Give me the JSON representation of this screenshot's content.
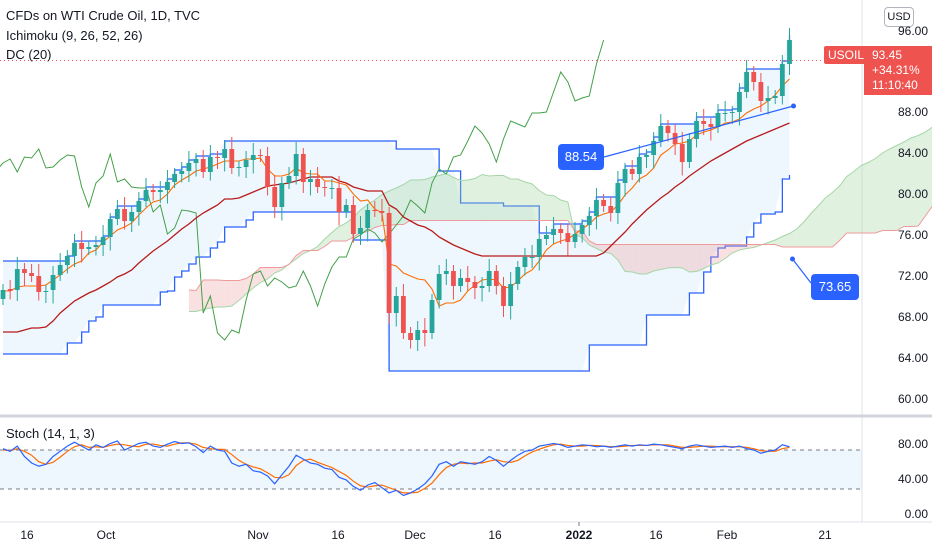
{
  "header": {
    "title": "CFDs on WTI Crude Oil, 1D, TVC",
    "indicator_1": "Ichimoku (9, 26, 52, 26)",
    "indicator_2": "DC (20)",
    "stoch_label": "Stoch (14, 1, 3)",
    "currency": "USD"
  },
  "price_tag": {
    "symbol": "USOIL",
    "price": "93.45",
    "change": "+34.31%",
    "countdown": "11:10:40"
  },
  "callouts": {
    "upper": "88.54",
    "lower": "73.65"
  },
  "price_axis": [
    "96.00",
    "92.00",
    "88.00",
    "84.00",
    "80.00",
    "76.00",
    "72.00",
    "68.00",
    "64.00",
    "60.00"
  ],
  "stoch_axis": [
    "80.00",
    "40.00",
    "0.00"
  ],
  "time_axis": [
    {
      "label": "16",
      "bold": false
    },
    {
      "label": "Oct",
      "bold": false
    },
    {
      "label": "Nov",
      "bold": false
    },
    {
      "label": "16",
      "bold": false
    },
    {
      "label": "Dec",
      "bold": false
    },
    {
      "label": "16",
      "bold": false
    },
    {
      "label": "2022",
      "bold": true
    },
    {
      "label": "16",
      "bold": false
    },
    {
      "label": "Feb",
      "bold": false
    },
    {
      "label": "21",
      "bold": false
    }
  ],
  "colors": {
    "up": "#26a69a",
    "down": "#ef5350",
    "donchian": "#2962ff",
    "tenkan": "#2962ff",
    "kijun": "#b71c1c",
    "lagging": "#43a047",
    "stoch_k": "#2962ff",
    "stoch_d": "#ff6d00",
    "cloud_bull": "#a5d6a7",
    "cloud_bear": "#ef9a9a"
  },
  "chart_data": {
    "type": "candlestick",
    "ylim": [
      58.5,
      98
    ],
    "dates": [
      "2021-09-13",
      "2021-09-14",
      "2021-09-15",
      "2021-09-16",
      "2021-09-17",
      "2021-09-20",
      "2021-09-21",
      "2021-09-22",
      "2021-09-23",
      "2021-09-24",
      "2021-09-27",
      "2021-09-28",
      "2021-09-29",
      "2021-09-30",
      "2021-10-01",
      "2021-10-04",
      "2021-10-05",
      "2021-10-06",
      "2021-10-07",
      "2021-10-08",
      "2021-10-11",
      "2021-10-12",
      "2021-10-13",
      "2021-10-14",
      "2021-10-15",
      "2021-10-18",
      "2021-10-19",
      "2021-10-20",
      "2021-10-21",
      "2021-10-22",
      "2021-10-25",
      "2021-10-26",
      "2021-10-27",
      "2021-10-28",
      "2021-10-29",
      "2021-11-01",
      "2021-11-02",
      "2021-11-03",
      "2021-11-04",
      "2021-11-05",
      "2021-11-08",
      "2021-11-09",
      "2021-11-10",
      "2021-11-11",
      "2021-11-12",
      "2021-11-15",
      "2021-11-16",
      "2021-11-17",
      "2021-11-18",
      "2021-11-19",
      "2021-11-22",
      "2021-11-23",
      "2021-11-24",
      "2021-11-25",
      "2021-11-26",
      "2021-11-29",
      "2021-11-30",
      "2021-12-01",
      "2021-12-02",
      "2021-12-03",
      "2021-12-06",
      "2021-12-07",
      "2021-12-08",
      "2021-12-09",
      "2021-12-10",
      "2021-12-13",
      "2021-12-14",
      "2021-12-15",
      "2021-12-16",
      "2021-12-17",
      "2021-12-20",
      "2021-12-21",
      "2021-12-22",
      "2021-12-23",
      "2021-12-24",
      "2021-12-27",
      "2021-12-28",
      "2021-12-29",
      "2021-12-30",
      "2021-12-31",
      "2022-01-03",
      "2022-01-04",
      "2022-01-05",
      "2022-01-06",
      "2022-01-07",
      "2022-01-10",
      "2022-01-11",
      "2022-01-12",
      "2022-01-13",
      "2022-01-14",
      "2022-01-17",
      "2022-01-18",
      "2022-01-19",
      "2022-01-20",
      "2022-01-21",
      "2022-01-24",
      "2022-01-25",
      "2022-01-26",
      "2022-01-27",
      "2022-01-28",
      "2022-01-31",
      "2022-02-01",
      "2022-02-02",
      "2022-02-03",
      "2022-02-04",
      "2022-02-07",
      "2022-02-08",
      "2022-02-09",
      "2022-02-10",
      "2022-02-11",
      "2022-02-14"
    ],
    "close": [
      70.5,
      70.4,
      72.6,
      72.2,
      71.9,
      70.3,
      70.4,
      72.0,
      73.0,
      73.9,
      75.2,
      74.6,
      74.8,
      75.0,
      75.8,
      77.6,
      78.6,
      77.4,
      78.3,
      79.4,
      80.5,
      80.3,
      80.5,
      81.3,
      82.1,
      82.4,
      83.2,
      83.6,
      82.3,
      83.8,
      83.7,
      84.6,
      82.7,
      82.8,
      83.5,
      84.0,
      83.9,
      80.8,
      78.8,
      81.2,
      81.9,
      84.1,
      81.3,
      81.6,
      80.8,
      80.7,
      80.7,
      78.3,
      79.0,
      76.1,
      76.7,
      78.5,
      78.4,
      78.2,
      68.2,
      69.9,
      66.2,
      65.5,
      66.5,
      66.2,
      69.5,
      72.1,
      72.4,
      70.9,
      71.7,
      71.3,
      70.7,
      70.9,
      72.4,
      70.9,
      68.9,
      71.1,
      72.8,
      73.8,
      73.8,
      75.6,
      76.0,
      76.6,
      76.2,
      75.3,
      76.1,
      77.0,
      77.9,
      79.5,
      78.9,
      78.2,
      81.2,
      82.6,
      82.1,
      83.8,
      84.0,
      85.4,
      86.9,
      86.2,
      85.1,
      83.3,
      85.6,
      87.4,
      87.1,
      86.8,
      88.2,
      88.2,
      88.3,
      90.3,
      92.3,
      91.3,
      89.4,
      89.7,
      89.9,
      93.1,
      95.5
    ],
    "open": [
      69.6,
      70.6,
      70.5,
      72.6,
      72.2,
      71.9,
      70.3,
      70.5,
      72.0,
      73.0,
      73.9,
      75.2,
      74.6,
      74.8,
      75.0,
      75.8,
      77.6,
      78.6,
      77.4,
      78.3,
      79.4,
      80.5,
      80.3,
      80.5,
      81.3,
      82.1,
      82.4,
      83.2,
      83.6,
      82.3,
      83.8,
      83.7,
      84.6,
      82.7,
      82.8,
      83.5,
      84.0,
      83.9,
      80.8,
      78.8,
      81.2,
      81.9,
      84.1,
      81.3,
      81.6,
      80.8,
      80.7,
      80.7,
      78.3,
      79.0,
      76.1,
      76.7,
      78.5,
      78.4,
      78.2,
      68.2,
      69.9,
      66.2,
      65.5,
      66.5,
      66.2,
      69.5,
      72.1,
      72.4,
      70.9,
      71.7,
      71.3,
      70.7,
      70.9,
      72.4,
      70.9,
      68.9,
      71.1,
      72.8,
      73.8,
      73.8,
      75.6,
      76.0,
      76.6,
      76.2,
      75.3,
      76.1,
      77.0,
      77.9,
      79.5,
      78.9,
      78.2,
      81.2,
      82.6,
      82.1,
      83.8,
      84.0,
      85.4,
      86.9,
      86.2,
      85.1,
      83.3,
      85.6,
      87.4,
      87.1,
      86.8,
      88.2,
      88.2,
      88.3,
      90.3,
      92.3,
      91.3,
      89.4,
      89.7,
      89.9,
      93.1
    ],
    "projection_start": "2022-02-15",
    "donchian": {
      "upper": [
        73.4,
        73.4,
        73.4,
        73.4,
        73.4,
        73.4,
        73.4,
        73.4,
        73.4,
        73.9,
        75.4,
        75.4,
        75.4,
        75.4,
        75.9,
        77.8,
        78.9,
        78.9,
        78.9,
        79.6,
        80.8,
        80.8,
        80.8,
        81.6,
        82.5,
        82.8,
        83.5,
        83.9,
        83.9,
        84.1,
        84.1,
        85.4,
        85.4,
        85.4,
        85.4,
        85.4,
        85.4,
        85.4,
        85.4,
        85.4,
        85.4,
        85.4,
        85.4,
        85.4,
        85.4,
        85.4,
        85.4,
        85.4,
        85.4,
        85.4,
        85.4,
        85.4,
        85.4,
        85.4,
        85.4,
        84.6,
        84.6,
        84.6,
        84.6,
        84.6,
        84.6,
        82.4,
        82.4,
        82.4,
        79.2,
        79.2,
        79.2,
        79.2,
        79.2,
        79.2,
        78.9,
        78.9,
        78.9,
        78.9,
        78.9,
        76.2,
        76.2,
        77.1,
        77.1,
        77.1,
        77.1,
        77.4,
        78.3,
        79.8,
        79.8,
        79.8,
        81.5,
        82.9,
        82.9,
        84.1,
        84.3,
        85.8,
        87.1,
        87.1,
        87.1,
        87.1,
        87.1,
        87.8,
        87.8,
        87.8,
        88.5,
        88.5,
        88.6,
        90.7,
        92.6,
        92.6,
        92.6,
        92.6,
        92.6,
        93.4,
        96.0
      ],
      "lower": [
        64.1,
        64.1,
        64.1,
        64.1,
        64.1,
        64.1,
        64.1,
        64.1,
        64.1,
        65.2,
        65.2,
        66.3,
        67.4,
        67.8,
        69.0,
        69.0,
        69.0,
        69.0,
        69.0,
        69.0,
        69.0,
        69.0,
        70.3,
        70.4,
        71.8,
        72.4,
        73.1,
        73.8,
        73.8,
        74.7,
        75.3,
        76.8,
        76.8,
        76.8,
        77.5,
        78.3,
        78.3,
        78.3,
        78.3,
        78.3,
        78.3,
        78.3,
        78.3,
        78.3,
        78.3,
        78.3,
        78.3,
        78.3,
        78.3,
        75.5,
        75.5,
        75.5,
        75.5,
        75.5,
        62.4,
        62.4,
        62.4,
        62.4,
        62.4,
        62.4,
        62.4,
        62.4,
        62.4,
        62.4,
        62.4,
        62.4,
        62.4,
        62.4,
        62.4,
        62.4,
        62.4,
        62.4,
        62.4,
        62.4,
        62.4,
        62.4,
        62.4,
        62.4,
        62.4,
        62.4,
        62.4,
        62.4,
        65.0,
        65.0,
        65.0,
        65.0,
        65.0,
        65.0,
        65.0,
        65.0,
        68.0,
        68.0,
        68.0,
        68.0,
        68.0,
        68.0,
        70.2,
        70.2,
        72.3,
        73.8,
        74.7,
        74.9,
        74.9,
        74.9,
        75.8,
        77.2,
        78.1,
        78.1,
        78.3,
        81.6,
        82.0
      ]
    },
    "ichimoku": {
      "tenkan": [
        70.4,
        70.4,
        70.8,
        70.9,
        70.9,
        70.9,
        71.0,
        71.5,
        72.0,
        72.6,
        73.1,
        73.4,
        74.2,
        74.5,
        75.3,
        75.9,
        76.5,
        76.8,
        77.2,
        78.0,
        78.7,
        79.3,
        79.5,
        80.1,
        81.0,
        81.5,
        81.9,
        82.4,
        82.6,
        82.8,
        83.1,
        83.4,
        83.4,
        83.4,
        83.6,
        83.6,
        83.7,
        82.6,
        81.9,
        81.9,
        82.1,
        82.7,
        82.2,
        82.1,
        82.1,
        81.4,
        81.4,
        81.2,
        81.0,
        80.1,
        79.4,
        79.5,
        78.6,
        78.2,
        73.1,
        72.9,
        72.2,
        71.9,
        71.6,
        71.5,
        70.6,
        68.9,
        69.2,
        69.2,
        69.5,
        70.4,
        71.0,
        71.5,
        71.6,
        71.5,
        70.7,
        70.8,
        71.4,
        72.1,
        72.5,
        73.4,
        74.5,
        75.1,
        75.4,
        75.6,
        76.1,
        76.6,
        77.1,
        77.8,
        78.1,
        78.3,
        79.0,
        80.0,
        80.7,
        81.6,
        82.0,
        82.7,
        84.0,
        84.5,
        85.1,
        85.2,
        85.4,
        86.0,
        86.3,
        86.5,
        86.8,
        87.2,
        87.3,
        87.6,
        88.2,
        88.6,
        88.9,
        89.4,
        90.0,
        90.9,
        91.6
      ],
      "kijun": [
        66.3,
        66.3,
        66.3,
        66.5,
        66.7,
        66.7,
        66.8,
        67.4,
        68.2,
        68.8,
        69.4,
        69.8,
        70.2,
        70.5,
        70.9,
        71.3,
        71.8,
        72.1,
        72.5,
        73.2,
        73.8,
        74.4,
        74.9,
        75.4,
        76.0,
        76.6,
        77.1,
        77.7,
        78.2,
        78.6,
        79.0,
        79.6,
        79.6,
        79.7,
        80.0,
        80.3,
        80.6,
        80.9,
        81.0,
        81.1,
        81.2,
        81.4,
        81.6,
        81.8,
        81.8,
        81.8,
        81.8,
        81.4,
        81.2,
        80.8,
        80.6,
        80.4,
        80.4,
        80.4,
        79.0,
        78.6,
        77.8,
        77.4,
        77.0,
        76.8,
        76.4,
        75.8,
        75.4,
        75.0,
        74.7,
        74.4,
        74.1,
        73.9,
        73.9,
        73.9,
        73.9,
        73.9,
        73.9,
        73.9,
        73.9,
        73.9,
        73.9,
        73.9,
        73.9,
        73.9,
        73.9,
        73.9,
        73.9,
        73.9,
        74.2,
        74.9,
        75.6,
        76.3,
        77.1,
        77.8,
        78.5,
        79.1,
        79.7,
        80.2,
        80.8,
        81.3,
        81.9,
        82.4,
        82.9,
        83.4,
        83.8,
        84.2,
        84.6,
        85.0,
        85.4,
        85.7,
        86.0,
        86.3,
        86.6,
        86.9,
        87.2
      ]
    },
    "stochastic": {
      "k": [
        82,
        78,
        86,
        70,
        60,
        55,
        58,
        70,
        78,
        86,
        92,
        86,
        80,
        88,
        84,
        90,
        94,
        80,
        85,
        90,
        92,
        86,
        84,
        89,
        93,
        90,
        91,
        85,
        76,
        86,
        80,
        78,
        60,
        55,
        58,
        48,
        46,
        40,
        28,
        42,
        55,
        72,
        66,
        60,
        58,
        52,
        50,
        38,
        34,
        24,
        18,
        26,
        30,
        22,
        14,
        18,
        10,
        14,
        20,
        28,
        40,
        58,
        62,
        55,
        62,
        60,
        58,
        62,
        70,
        64,
        55,
        64,
        72,
        78,
        80,
        86,
        88,
        90,
        88,
        84,
        86,
        88,
        87,
        85,
        86,
        84,
        86,
        88,
        86,
        88,
        87,
        89,
        88,
        86,
        84,
        82,
        86,
        88,
        86,
        84,
        85,
        86,
        84,
        86,
        82,
        80,
        75,
        78,
        80,
        88,
        85
      ],
      "d": [
        80,
        79,
        82,
        78,
        72,
        62,
        58,
        61,
        69,
        78,
        85,
        88,
        84,
        85,
        84,
        87,
        89,
        88,
        86,
        85,
        89,
        89,
        87,
        86,
        89,
        91,
        91,
        89,
        84,
        82,
        81,
        81,
        73,
        64,
        58,
        54,
        51,
        45,
        38,
        37,
        42,
        56,
        64,
        66,
        61,
        57,
        53,
        47,
        41,
        32,
        25,
        23,
        25,
        26,
        22,
        18,
        14,
        14,
        15,
        21,
        29,
        42,
        53,
        58,
        60,
        59,
        60,
        60,
        63,
        65,
        62,
        61,
        64,
        71,
        77,
        81,
        85,
        88,
        89,
        87,
        86,
        86,
        87,
        87,
        86,
        85,
        85,
        86,
        87,
        87,
        87,
        88,
        88,
        88,
        86,
        84,
        84,
        85,
        86,
        86,
        85,
        85,
        85,
        85,
        84,
        82,
        79,
        78,
        78,
        82,
        84
      ]
    }
  }
}
